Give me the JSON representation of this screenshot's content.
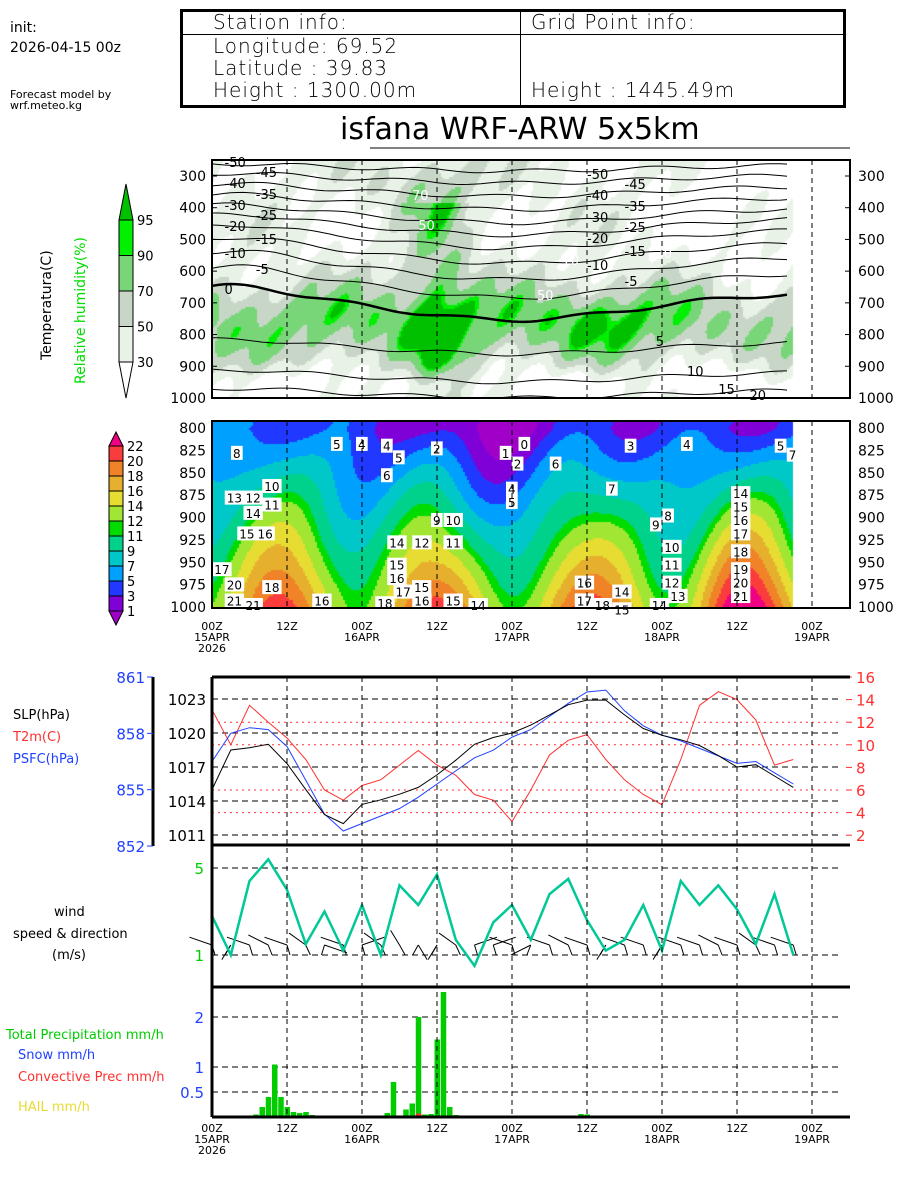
{
  "header": {
    "init_label": "init:",
    "init_time": "2026-04-15 00z",
    "credit_line1": "Forecast model by",
    "credit_line2": "wrf.meteo.kg"
  },
  "station": {
    "title": "Station info:",
    "longitude": "Longitude: 69.52",
    "latitude": "Latitude : 39.83",
    "height": "Height   : 1300.00m"
  },
  "grid_point": {
    "title": "Grid Point info:",
    "height": "Height   : 1445.49m"
  },
  "title": "isfana WRF-ARW 5x5km",
  "time_axis": [
    {
      "hour": 0,
      "label": "00Z",
      "date": "15APR",
      "year": "2026"
    },
    {
      "hour": 12,
      "label": "12Z"
    },
    {
      "hour": 24,
      "label": "00Z",
      "date": "16APR"
    },
    {
      "hour": 36,
      "label": "12Z"
    },
    {
      "hour": 48,
      "label": "00Z",
      "date": "17APR"
    },
    {
      "hour": 60,
      "label": "12Z"
    },
    {
      "hour": 72,
      "label": "00Z",
      "date": "18APR"
    },
    {
      "hour": 84,
      "label": "12Z"
    },
    {
      "hour": 96,
      "label": "00Z",
      "date": "19APR"
    }
  ],
  "colors": {
    "rh": [
      "#ffffff",
      "#e8f2e6",
      "#c8d6c8",
      "#78d678",
      "#00f000",
      "#00c000"
    ],
    "temp_fill": [
      "#a000c8",
      "#8000d8",
      "#2038ff",
      "#00a0ff",
      "#00c8c8",
      "#00d28c",
      "#00dc00",
      "#a0e632",
      "#e6dc32",
      "#e6af2d",
      "#f08228",
      "#fa3c3c",
      "#f00082"
    ],
    "slp": "#000000",
    "t2m": "#ff3030",
    "psfc": "#2040ff",
    "wind": "#00c896",
    "precip": "#00cc00",
    "convective": "#ff3030",
    "snow": "#2040ff",
    "hail": "#e6dc32"
  },
  "chart_data": [
    {
      "type": "heatmap",
      "name": "upper-cross-section",
      "legend_title_1": "Temperatura(C)",
      "legend_title_2": "Relative humidity(%)",
      "rh_levels": [
        30,
        50,
        70,
        90,
        95
      ],
      "rh_level_labels": [
        "30",
        "50",
        "70",
        "90",
        "95"
      ],
      "y_ticks": [
        300,
        400,
        500,
        600,
        700,
        800,
        900,
        1000
      ],
      "y_tick_labels": [
        "300",
        "400",
        "500",
        "600",
        "700",
        "800",
        "900",
        "1000"
      ],
      "ylim": [
        1000,
        250
      ],
      "isotherms": [
        -50,
        -45,
        -40,
        -35,
        -30,
        -25,
        -20,
        -15,
        -10,
        -5,
        0,
        5,
        10,
        15,
        20
      ],
      "isotherm_labels": [
        "-50",
        "-45",
        "-40",
        "-35",
        "-30",
        "-25",
        "-20",
        "-15",
        "-10",
        "-5",
        "0",
        "5",
        "10",
        "15",
        "20"
      ],
      "rh_contour_labels": [
        "70",
        "50",
        "70",
        "50",
        "30"
      ]
    },
    {
      "type": "heatmap",
      "name": "lower-cross-section",
      "levels": [
        1,
        3,
        5,
        7,
        9,
        11,
        12,
        14,
        16,
        18,
        20,
        22
      ],
      "level_labels": [
        "1",
        "3",
        "5",
        "7",
        "9",
        "11",
        "12",
        "14",
        "16",
        "18",
        "20",
        "22"
      ],
      "y_ticks": [
        800,
        825,
        850,
        875,
        900,
        925,
        950,
        975,
        1000
      ],
      "y_tick_labels": [
        "800",
        "825",
        "850",
        "875",
        "900",
        "925",
        "950",
        "975",
        "1000"
      ],
      "ylim": [
        1000,
        800
      ],
      "contour_labels": [
        {
          "hour": 4,
          "p": 830,
          "text": "8"
        },
        {
          "hour": 3,
          "p": 880,
          "text": "13"
        },
        {
          "hour": 6,
          "p": 880,
          "text": "12"
        },
        {
          "hour": 9,
          "p": 867,
          "text": "10"
        },
        {
          "hour": 9,
          "p": 880,
          "text": "11"
        },
        {
          "hour": 6,
          "p": 897,
          "text": "14"
        },
        {
          "hour": 5,
          "p": 920,
          "text": "15"
        },
        {
          "hour": 6,
          "p": 920,
          "text": "16"
        },
        {
          "hour": 1,
          "p": 960,
          "text": "17"
        },
        {
          "hour": 3,
          "p": 977,
          "text": "20"
        },
        {
          "hour": 9,
          "p": 980,
          "text": "18"
        },
        {
          "hour": 3,
          "p": 995,
          "text": "21"
        },
        {
          "hour": 6,
          "p": 1000,
          "text": "21"
        },
        {
          "hour": 17,
          "p": 995,
          "text": "16"
        },
        {
          "hour": 20,
          "p": 820,
          "text": "5"
        },
        {
          "hour": 24,
          "p": 820,
          "text": "4"
        },
        {
          "hour": 28,
          "p": 822,
          "text": "4"
        },
        {
          "hour": 28,
          "p": 835,
          "text": "5"
        },
        {
          "hour": 28,
          "p": 855,
          "text": "6"
        },
        {
          "hour": 29,
          "p": 930,
          "text": "14"
        },
        {
          "hour": 29,
          "p": 955,
          "text": "15"
        },
        {
          "hour": 29,
          "p": 970,
          "text": "16"
        },
        {
          "hour": 30,
          "p": 985,
          "text": "17"
        },
        {
          "hour": 29,
          "p": 998,
          "text": "18"
        },
        {
          "hour": 32,
          "p": 980,
          "text": "15"
        },
        {
          "hour": 33,
          "p": 995,
          "text": "16"
        },
        {
          "hour": 33,
          "p": 930,
          "text": "12"
        },
        {
          "hour": 36,
          "p": 825,
          "text": "2"
        },
        {
          "hour": 36,
          "p": 905,
          "text": "9"
        },
        {
          "hour": 38,
          "p": 905,
          "text": "10"
        },
        {
          "hour": 38,
          "p": 930,
          "text": "11"
        },
        {
          "hour": 38,
          "p": 995,
          "text": "15"
        },
        {
          "hour": 42,
          "p": 1000,
          "text": "14"
        },
        {
          "hour": 47,
          "p": 830,
          "text": "1"
        },
        {
          "hour": 47,
          "p": 842,
          "text": "2"
        },
        {
          "hour": 50,
          "p": 820,
          "text": "0"
        },
        {
          "hour": 48,
          "p": 870,
          "text": "4"
        },
        {
          "hour": 48,
          "p": 885,
          "text": "5"
        },
        {
          "hour": 55,
          "p": 842,
          "text": "6"
        },
        {
          "hour": 64,
          "p": 870,
          "text": "7"
        },
        {
          "hour": 59,
          "p": 975,
          "text": "16"
        },
        {
          "hour": 59,
          "p": 987,
          "text": "17"
        },
        {
          "hour": 59,
          "p": 1000,
          "text": "18"
        },
        {
          "hour": 65,
          "p": 985,
          "text": "14"
        },
        {
          "hour": 65,
          "p": 997,
          "text": "15"
        },
        {
          "hour": 67,
          "p": 822,
          "text": "3"
        },
        {
          "hour": 71,
          "p": 1000,
          "text": "14"
        },
        {
          "hour": 73,
          "p": 900,
          "text": "8"
        },
        {
          "hour": 72,
          "p": 910,
          "text": "9"
        },
        {
          "hour": 73,
          "p": 935,
          "text": "10"
        },
        {
          "hour": 73,
          "p": 955,
          "text": "11"
        },
        {
          "hour": 73,
          "p": 975,
          "text": "12"
        },
        {
          "hour": 73,
          "p": 990,
          "text": "13"
        },
        {
          "hour": 76,
          "p": 820,
          "text": "4"
        },
        {
          "hour": 84,
          "p": 875,
          "text": "14"
        },
        {
          "hour": 84,
          "p": 890,
          "text": "15"
        },
        {
          "hour": 84,
          "p": 905,
          "text": "16"
        },
        {
          "hour": 84,
          "p": 920,
          "text": "17"
        },
        {
          "hour": 84,
          "p": 940,
          "text": "18"
        },
        {
          "hour": 84,
          "p": 960,
          "text": "19"
        },
        {
          "hour": 84,
          "p": 975,
          "text": "20"
        },
        {
          "hour": 84,
          "p": 990,
          "text": "21"
        },
        {
          "hour": 91,
          "p": 822,
          "text": "5"
        },
        {
          "hour": 91,
          "p": 832,
          "text": "7"
        }
      ]
    },
    {
      "type": "line",
      "name": "pressure-temperature",
      "x_hours": [
        0,
        3,
        6,
        9,
        12,
        15,
        18,
        21,
        24,
        27,
        30,
        33,
        36,
        39,
        42,
        45,
        48,
        51,
        54,
        57,
        60,
        63,
        66,
        69,
        72,
        75,
        78,
        81,
        84,
        87,
        90,
        93
      ],
      "series": [
        {
          "name": "SLP(hPa)",
          "axis": "left",
          "values": [
            1015.0,
            1018.5,
            1018.7,
            1019.0,
            1017.3,
            1015.0,
            1012.8,
            1012.0,
            1013.7,
            1014.1,
            1014.6,
            1015.2,
            1016.3,
            1017.6,
            1019.0,
            1019.6,
            1020.0,
            1020.7,
            1021.6,
            1022.5,
            1022.9,
            1022.9,
            1021.6,
            1020.4,
            1019.8,
            1019.4,
            1018.9,
            1018.0,
            1017.0,
            1017.2,
            1016.2,
            1015.2
          ]
        },
        {
          "name": "T2m(C)",
          "axis": "right",
          "values": [
            13.1,
            10.0,
            13.5,
            12.0,
            10.6,
            8.7,
            6.0,
            5.1,
            6.4,
            6.9,
            8.2,
            9.5,
            8.2,
            7.3,
            5.6,
            5.1,
            3.2,
            6.0,
            9.1,
            10.4,
            10.9,
            8.7,
            6.9,
            5.6,
            4.7,
            8.7,
            13.5,
            14.7,
            14.0,
            12.2,
            8.2,
            8.7
          ]
        },
        {
          "name": "PSFC(hPa)",
          "axis": "left2",
          "values": [
            856.5,
            858.0,
            858.3,
            858.2,
            857.3,
            855.5,
            853.7,
            852.8,
            853.2,
            853.6,
            854.0,
            854.6,
            855.3,
            856.0,
            856.7,
            857.1,
            857.8,
            858.2,
            858.9,
            859.6,
            860.2,
            860.3,
            859.2,
            858.4,
            857.9,
            857.6,
            857.2,
            856.8,
            856.4,
            856.5,
            855.9,
            855.3
          ]
        }
      ],
      "left_ticks": [
        1011,
        1014,
        1017,
        1020,
        1023
      ],
      "left_tick_labels": [
        "1011",
        "1014",
        "1017",
        "1020",
        "1023"
      ],
      "right_ticks": [
        2,
        4,
        6,
        8,
        10,
        12,
        14,
        16
      ],
      "right_tick_labels": [
        "2",
        "4",
        "6",
        "8",
        "10",
        "12",
        "14",
        "16"
      ],
      "left2_ticks": [
        852,
        855,
        858,
        861
      ],
      "left2_tick_labels": [
        "852",
        "855",
        "858",
        "861"
      ],
      "ylim_left": [
        1009.0,
        1024.9
      ],
      "ylim_right": [
        1.0,
        16.0
      ],
      "ylim_left2": [
        852,
        861
      ],
      "legend": [
        "SLP(hPa)",
        "T2m(C)",
        "PSFC(hPa)"
      ]
    },
    {
      "type": "line",
      "name": "wind",
      "ylabel_1": "wind",
      "ylabel_2": "speed & direction",
      "ylabel_3": "(m/s)",
      "x_hours": [
        0,
        3,
        6,
        9,
        12,
        15,
        18,
        21,
        24,
        27,
        30,
        33,
        36,
        39,
        42,
        45,
        48,
        51,
        54,
        57,
        60,
        63,
        66,
        69,
        72,
        75,
        78,
        81,
        84,
        87,
        90,
        93
      ],
      "speed": [
        2.8,
        1.0,
        4.4,
        5.4,
        4.0,
        1.5,
        3.0,
        1.2,
        3.3,
        1.0,
        4.2,
        3.3,
        4.7,
        1.7,
        0.5,
        2.5,
        3.3,
        1.7,
        3.8,
        4.5,
        2.6,
        1.2,
        1.7,
        3.3,
        1.2,
        4.4,
        3.3,
        4.2,
        3.1,
        1.5,
        3.8,
        1.0
      ],
      "direction_deg": [
        300,
        200,
        300,
        310,
        300,
        320,
        120,
        300,
        60,
        320,
        340,
        160,
        200,
        320,
        60,
        60,
        300,
        230,
        300,
        310,
        300,
        200,
        300,
        300,
        200,
        300,
        300,
        310,
        300,
        320,
        300,
        300
      ],
      "y_ticks": [
        1,
        5
      ],
      "y_tick_labels": [
        "1",
        "5"
      ],
      "ylim": [
        -0.5,
        6.0
      ]
    },
    {
      "type": "bar",
      "name": "precipitation",
      "legend": [
        "Total Precipitation mm/h",
        "Snow mm/h",
        "Convective Prec mm/h",
        "HAIL mm/h"
      ],
      "x_hours": [
        6,
        7,
        8,
        9,
        10,
        11,
        12,
        13,
        14,
        15,
        16,
        28,
        29,
        30,
        31,
        32,
        33,
        34,
        35,
        36,
        37,
        38,
        39,
        40,
        41,
        42,
        43,
        44,
        45,
        58,
        59,
        60,
        61,
        62
      ],
      "total": [
        0.02,
        0.05,
        0.2,
        0.4,
        1.05,
        0.4,
        0.2,
        0.1,
        0.08,
        0.1,
        0.04,
        0.08,
        0.7,
        0.02,
        0.15,
        0.27,
        2.0,
        0.05,
        0.06,
        1.55,
        2.5,
        0.2,
        0.04,
        0.02,
        0.02,
        0.02,
        0.02,
        0.02,
        0.02,
        0.02,
        0.06,
        0.05,
        0.03,
        0.02
      ],
      "convective": [
        0,
        0,
        0,
        0,
        0,
        0,
        0,
        0,
        0,
        0,
        0,
        0,
        0,
        0,
        0,
        0,
        0.07,
        0,
        0,
        0,
        0,
        0,
        0,
        0,
        0,
        0,
        0,
        0,
        0,
        0,
        0,
        0,
        0,
        0
      ],
      "y_ticks": [
        0.5,
        1,
        2
      ],
      "y_tick_labels": [
        "0.5",
        "1",
        "2"
      ],
      "ylim": [
        0,
        2.6
      ]
    }
  ]
}
